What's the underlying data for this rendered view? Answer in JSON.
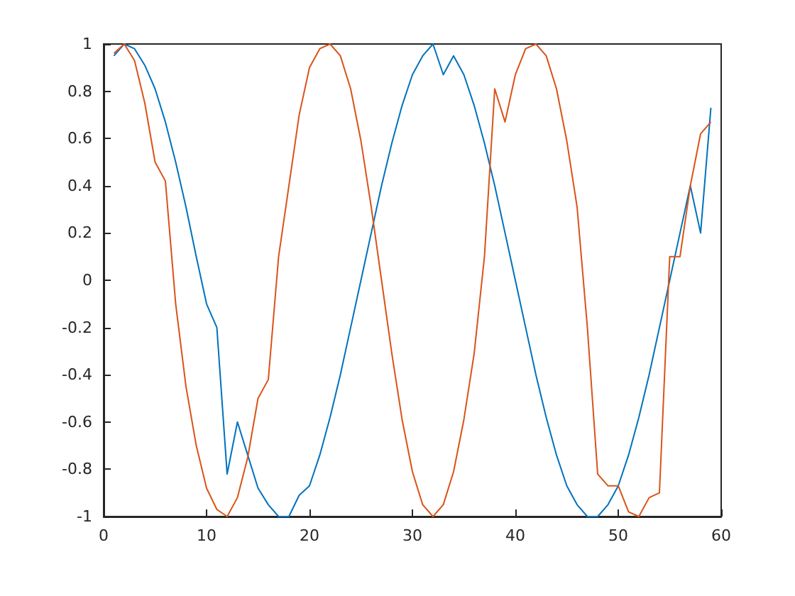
{
  "chart_data": {
    "type": "line",
    "x": [
      1,
      2,
      3,
      4,
      5,
      6,
      7,
      8,
      9,
      10,
      11,
      12,
      13,
      14,
      15,
      16,
      17,
      18,
      19,
      20,
      21,
      22,
      23,
      24,
      25,
      26,
      27,
      28,
      29,
      30,
      31,
      32,
      33,
      34,
      35,
      36,
      37,
      38,
      39,
      40,
      41,
      42,
      43,
      44,
      45,
      46,
      47,
      48,
      49,
      50,
      51,
      52,
      53,
      54,
      55,
      56,
      57,
      58,
      59
    ],
    "series": [
      {
        "color": "#0072bd",
        "values": [
          0.95,
          1,
          0.98,
          0.91,
          0.81,
          0.67,
          0.5,
          0.31,
          0.1,
          -0.1,
          -0.2,
          -0.82,
          -0.6,
          -0.74,
          -0.88,
          -0.95,
          -1,
          -1,
          -0.91,
          -0.87,
          -0.74,
          -0.58,
          -0.4,
          -0.2,
          0,
          0.2,
          0.4,
          0.58,
          0.74,
          0.87,
          0.95,
          1,
          0.87,
          0.95,
          0.87,
          0.74,
          0.58,
          0.4,
          0.2,
          0,
          -0.2,
          -0.4,
          -0.58,
          -0.74,
          -0.87,
          -0.95,
          -1,
          -1,
          -0.95,
          -0.87,
          -0.74,
          -0.58,
          -0.4,
          -0.2,
          0,
          0.2,
          0.4,
          0.2,
          0.73
        ]
      },
      {
        "color": "#d95319",
        "values": [
          0.96,
          1,
          0.93,
          0.75,
          0.5,
          0.42,
          -0.1,
          -0.45,
          -0.7,
          -0.88,
          -0.97,
          -1,
          -0.92,
          -0.75,
          -0.5,
          -0.42,
          0.1,
          0.4,
          0.7,
          0.9,
          0.98,
          1,
          0.95,
          0.81,
          0.59,
          0.31,
          0,
          -0.31,
          -0.59,
          -0.81,
          -0.95,
          -1,
          -0.95,
          -0.81,
          -0.59,
          -0.31,
          0.1,
          0.81,
          0.67,
          0.87,
          0.98,
          1,
          0.95,
          0.81,
          0.59,
          0.31,
          -0.2,
          -0.82,
          -0.87,
          -0.87,
          -0.98,
          -1,
          -0.92,
          -0.9,
          0.1,
          0.1,
          0.4,
          0.62,
          0.67
        ]
      }
    ],
    "xlim": [
      0,
      60
    ],
    "xticks": [
      0,
      10,
      20,
      30,
      40,
      50,
      60
    ],
    "ylim": [
      -1,
      1
    ],
    "yticks": [
      -1,
      -0.8,
      -0.6,
      -0.4,
      -0.2,
      0,
      0.2,
      0.4,
      0.6,
      0.8,
      1
    ],
    "grid": false,
    "marker": "none",
    "line_style": "solid"
  }
}
